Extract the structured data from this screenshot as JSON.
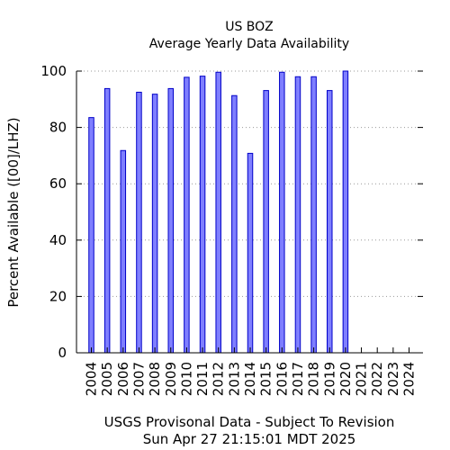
{
  "chart_data": {
    "type": "bar",
    "title": "US BOZ",
    "subtitle": "Average Yearly Data Availability",
    "ylabel": "Percent Available ([00]/LHZ)",
    "xlabel": "",
    "ylim": [
      0,
      100
    ],
    "yticks": [
      0,
      20,
      40,
      60,
      80,
      100
    ],
    "grid": "horizontal-dotted",
    "bar_color": "#7f7fff",
    "bar_edge_color": "#0000c8",
    "categories": [
      "2004",
      "2005",
      "2006",
      "2007",
      "2008",
      "2009",
      "2010",
      "2011",
      "2012",
      "2013",
      "2014",
      "2015",
      "2016",
      "2017",
      "2018",
      "2019",
      "2020",
      "2021",
      "2022",
      "2023",
      "2024"
    ],
    "values": [
      83.5,
      93.8,
      71.8,
      92.5,
      91.8,
      93.8,
      97.8,
      98.2,
      99.6,
      91.3,
      70.8,
      93.1,
      99.6,
      98.0,
      98.0,
      93.1,
      100,
      0,
      0,
      0,
      0
    ]
  },
  "footer": {
    "line1": "USGS Provisonal Data - Subject To Revision",
    "line2": "Sun Apr 27 21:15:01 MDT 2025"
  }
}
